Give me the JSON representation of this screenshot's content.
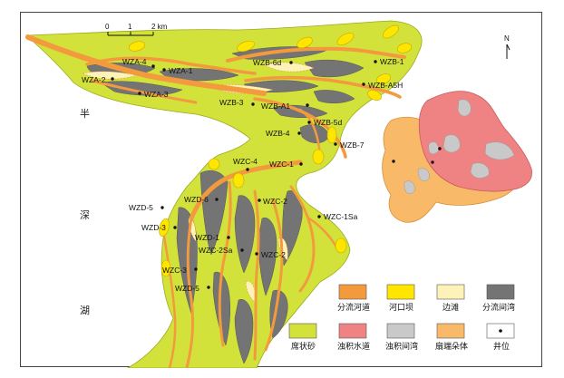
{
  "map": {
    "north_label": "N",
    "scale": {
      "ticks": [
        "0",
        "1",
        "2 km"
      ]
    },
    "side_text": [
      "半",
      "深",
      "湖"
    ],
    "wells": {
      "WZA-4": "WZA-4",
      "WZA-1": "WZA-1",
      "WZA-2": "WZA-2",
      "WZA-3": "WZA-3",
      "WZB-6d": "WZB-6d",
      "WZB-1": "WZB-1",
      "WZB-A5H": "WZB-A5H",
      "WZB-3": "WZB-3",
      "WZB-A1": "WZB-A1",
      "WZB-5d": "WZB-5d",
      "WZB-4": "WZB-4",
      "WZB-7": "WZB-7",
      "WZC-4": "WZC-4",
      "WZC-1": "WZC-1",
      "WZD-6": "WZD-6",
      "WZC-2": "WZC-2",
      "WZD-5": "WZD-5",
      "WZC-1Sa": "WZC-1Sa",
      "WZD-3": "WZD-3",
      "WZD-1": "WZD-1",
      "WZC-2Sa": "WZC-2Sa",
      "WZC-2b": "WZC-2",
      "WZC-3": "WZC-3",
      "WZD-5b": "WZD-5"
    }
  },
  "legend": {
    "items": [
      {
        "label": "分流河道",
        "color": "#f39a3e"
      },
      {
        "label": "河口坝",
        "color": "#ffe600"
      },
      {
        "label": "边滩",
        "color": "#fdf2b8"
      },
      {
        "label": "分流间湾",
        "color": "#747474"
      },
      {
        "label": "席状砂",
        "color": "#d2e23a"
      },
      {
        "label": "浊积水道",
        "color": "#ef8383"
      },
      {
        "label": "浊积间湾",
        "color": "#c9c9c9"
      },
      {
        "label": "扇端朵体",
        "color": "#f8b968"
      },
      {
        "label": "井位",
        "color": "#111111"
      }
    ]
  }
}
